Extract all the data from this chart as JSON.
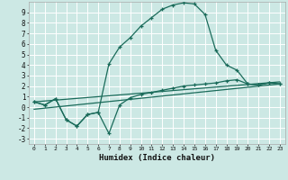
{
  "xlabel": "Humidex (Indice chaleur)",
  "xlim": [
    -0.5,
    23.5
  ],
  "ylim": [
    -3.5,
    10.0
  ],
  "yticks": [
    -3,
    -2,
    -1,
    0,
    1,
    2,
    3,
    4,
    5,
    6,
    7,
    8,
    9
  ],
  "xticks": [
    0,
    1,
    2,
    3,
    4,
    5,
    6,
    7,
    8,
    9,
    10,
    11,
    12,
    13,
    14,
    15,
    16,
    17,
    18,
    19,
    20,
    21,
    22,
    23
  ],
  "bg_color": "#cce8e4",
  "grid_color": "#ffffff",
  "line_color": "#1a6b5a",
  "line1_x": [
    0,
    1,
    2,
    3,
    4,
    5,
    6,
    7,
    8,
    9,
    10,
    11,
    12,
    13,
    14,
    15,
    16,
    17,
    18,
    19,
    20,
    21,
    22,
    23
  ],
  "line1_y": [
    0.5,
    0.2,
    0.8,
    -1.2,
    -1.8,
    -0.7,
    -0.5,
    4.1,
    5.7,
    6.6,
    7.7,
    8.5,
    9.3,
    9.7,
    9.9,
    9.8,
    8.8,
    5.4,
    4.0,
    3.5,
    2.2,
    2.1,
    2.3,
    2.2
  ],
  "line2_x": [
    0,
    1,
    2,
    3,
    4,
    5,
    6,
    7,
    8,
    9,
    10,
    11,
    12,
    13,
    14,
    15,
    16,
    17,
    18,
    19,
    20,
    21,
    22,
    23
  ],
  "line2_y": [
    0.5,
    0.2,
    0.8,
    -1.2,
    -1.8,
    -0.7,
    -0.5,
    -2.5,
    0.2,
    0.9,
    1.2,
    1.4,
    1.6,
    1.8,
    2.0,
    2.1,
    2.2,
    2.3,
    2.5,
    2.6,
    2.2,
    2.1,
    2.3,
    2.2
  ],
  "line3_x": [
    0,
    23
  ],
  "line3_y": [
    0.5,
    2.4
  ],
  "line4_x": [
    0,
    23
  ],
  "line4_y": [
    -0.2,
    2.2
  ]
}
